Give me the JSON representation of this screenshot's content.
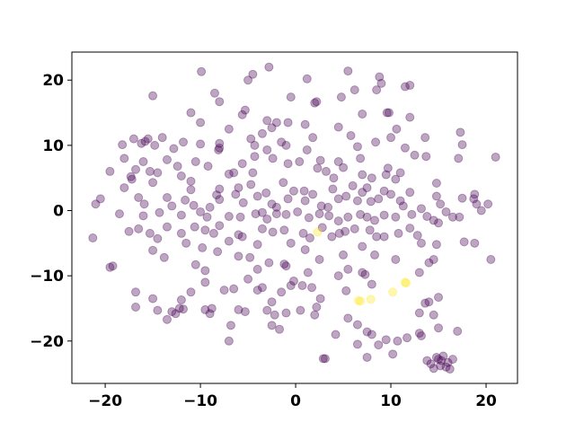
{
  "chart_data": {
    "type": "scatter",
    "xlim": [
      -23.5,
      23.3
    ],
    "ylim": [
      -26.5,
      24.3
    ],
    "xticks": [
      {
        "value": -20,
        "label": "−20"
      },
      {
        "value": -10,
        "label": "−10"
      },
      0,
      10,
      20
    ],
    "yticks": [
      {
        "value": -20,
        "label": "−20"
      },
      {
        "value": -10,
        "label": "−10"
      },
      0,
      10,
      20
    ],
    "alpha": 0.35,
    "series": [
      {
        "color": "#440154",
        "x": [
          -9.9,
          -4.5,
          -2.8,
          -5,
          1.2,
          5.5,
          8.5,
          8.8,
          9,
          12,
          11.5,
          -15,
          -8.5,
          -8,
          -0.5,
          2,
          2.2,
          4.8,
          6.2,
          -5.3,
          -5.6,
          -11,
          9.6,
          9.8,
          7,
          -10,
          -7,
          -8,
          -8.1,
          -8,
          -3,
          -2,
          -2.5,
          -3.5,
          -4.7,
          -4.3,
          -1.5,
          -1,
          -0.8,
          1,
          1.8,
          4.5,
          5.8,
          6.5,
          8.4,
          10,
          10.6,
          12,
          13.6,
          17.3,
          -18.2,
          -17,
          -16.2,
          -15.8,
          -15.5,
          -14.8,
          -14,
          -12.8,
          -11.8,
          -10,
          -19.5,
          -18,
          -17.2,
          -16.8,
          -16,
          -15.3,
          -14.5,
          -13.5,
          -12.4,
          -12,
          -11,
          -10.5,
          -9.2,
          -8,
          -7,
          -6.5,
          -5.6,
          -4.5,
          -4.3,
          -3,
          -2.4,
          -0.8,
          0.4,
          1.2,
          2.6,
          2.3,
          3.2,
          4,
          4.5,
          5,
          6.8,
          7,
          8,
          9.5,
          9.7,
          10.5,
          11,
          12.5,
          13.7,
          17.1,
          21,
          17.5,
          11.5,
          14.8,
          -20.5,
          -21,
          -18,
          -17.3,
          -16.5,
          -15.9,
          -15,
          -13.5,
          -13,
          -11.6,
          -10.7,
          -11,
          -10,
          -9,
          -8.3,
          -8,
          -6.3,
          -6,
          -5.5,
          -4.7,
          -4,
          -3.1,
          -2.5,
          -2,
          -1.3,
          -0.8,
          -0.2,
          0.9,
          1,
          1.8,
          2.7,
          3.4,
          3.9,
          4.5,
          5.3,
          6,
          6.5,
          7,
          7.5,
          7.9,
          8.7,
          9.3,
          10,
          11,
          11.3,
          12,
          13.2,
          14.8,
          15.2,
          17.5,
          18.7,
          18.8,
          19,
          20.2,
          -18.5,
          -16,
          -14.3,
          -12,
          -9.3,
          -7,
          -5.8,
          -4.2,
          -3.5,
          -3,
          -2,
          -1,
          0.2,
          1.4,
          2.5,
          3.5,
          4.5,
          5.5,
          6.8,
          7.5,
          8.3,
          9.3,
          10.5,
          12.2,
          13.8,
          14.5,
          15.8,
          16.5,
          17.2,
          19.5,
          -21.3,
          -17.5,
          -16.5,
          -15.3,
          -14.5,
          -13.5,
          -12,
          -11.5,
          -10.6,
          -9.5,
          -8.6,
          -8,
          -7,
          -6,
          -5.6,
          -4,
          -3.5,
          -2.4,
          -1.2,
          -0.5,
          0.8,
          1.5,
          2.8,
          3.8,
          4.6,
          5.2,
          6.2,
          7,
          7.8,
          8.5,
          9.3,
          10.8,
          12,
          12.8,
          13.2,
          14.8,
          15,
          17.7,
          18.8,
          -15,
          -13.8,
          -9.8,
          -8.2,
          -19.5,
          -19.2,
          -10.5,
          -9.5,
          -6,
          -4.8,
          -4,
          -2.8,
          -1.2,
          -1,
          1,
          2.5,
          5,
          5.5,
          7,
          7.3,
          8.3,
          10.5,
          13,
          14,
          14.5,
          20.5,
          -0.2,
          1.3,
          -16.8,
          -15,
          -12,
          -12.2,
          -11,
          -9.5,
          -8.8,
          -9.5,
          -7.5,
          -6.5,
          -5,
          -4,
          -3.5,
          -2.5,
          -1.5,
          -0.5,
          0.7,
          1.7,
          2.2,
          2.6,
          4.5,
          5.3,
          8,
          13,
          14,
          15,
          13.6,
          -16.8,
          -14.5,
          -13,
          -11.8,
          -6,
          -5.3,
          -13.5,
          -12.6,
          -9,
          -6.8,
          -3,
          -2.2,
          -2.5,
          -1.7,
          -1,
          0.5,
          2,
          4.2,
          5.5,
          6.5,
          6.5,
          7.5,
          8,
          8.7,
          9.5,
          10.7,
          11.7,
          13,
          13.2,
          14.5,
          -7,
          15,
          17,
          2.9,
          3.1,
          7.5,
          10.2,
          13.8,
          14.2,
          14.5,
          15,
          15.2,
          15.5,
          15.8,
          16,
          16.2,
          15.3,
          14.8,
          16.5
        ],
        "values": [
          21.3,
          20.9,
          22,
          20,
          20.2,
          21.4,
          18.5,
          20.5,
          19.5,
          19.2,
          19,
          17.6,
          18,
          16.7,
          17.4,
          16.5,
          16.7,
          17.4,
          18.5,
          15.4,
          14.7,
          15,
          15,
          15,
          14.8,
          13.5,
          12.5,
          10.3,
          9.3,
          9.6,
          13.8,
          13.5,
          12.7,
          11.8,
          11,
          10,
          10.5,
          10,
          13.5,
          13.2,
          11.2,
          12.8,
          11.5,
          9.8,
          10.5,
          11.2,
          12.5,
          14.3,
          11.2,
          12,
          10.1,
          11,
          10.3,
          10.6,
          11,
          10,
          11.2,
          9.5,
          10.5,
          10.2,
          6,
          8,
          4.8,
          6.3,
          7.5,
          6,
          5.8,
          7.8,
          6.8,
          5.3,
          4.5,
          7.5,
          6.8,
          3.3,
          5.6,
          5.8,
          7.2,
          5.8,
          8.3,
          9.3,
          8,
          7.2,
          7.5,
          9.3,
          7.7,
          6.5,
          6,
          5,
          7.5,
          6.6,
          8,
          5.5,
          5,
          5.5,
          6.5,
          4.8,
          5.8,
          8.5,
          8.3,
          8,
          8.2,
          10.1,
          9.6,
          4.2,
          1.8,
          1,
          3.5,
          5.2,
          2,
          1,
          4.3,
          2,
          0.7,
          1.6,
          0.8,
          3.2,
          -0.2,
          0.5,
          2.4,
          1.7,
          2.5,
          3.5,
          1.2,
          4,
          2.2,
          2.7,
          1,
          0.5,
          4.3,
          1.8,
          3,
          3,
          1.5,
          2.5,
          0.7,
          0.5,
          3.3,
          1.8,
          2.2,
          3.8,
          1.5,
          2.8,
          3.5,
          1.4,
          1.8,
          3,
          2.5,
          1.5,
          0.7,
          2.8,
          0.3,
          2.2,
          1,
          1.9,
          1.8,
          2.5,
          1,
          1,
          -0.5,
          -0.8,
          -0.3,
          -0.7,
          -1,
          -0.9,
          -1,
          -0.5,
          -0.3,
          -1.3,
          -0.5,
          -0.6,
          -0.2,
          -1.1,
          -0.5,
          -0.8,
          -1.6,
          -1,
          -0.6,
          -1,
          -1.5,
          -0.7,
          -1,
          -0.6,
          -0.9,
          -1.5,
          -0.2,
          -1,
          -1,
          0,
          -4.2,
          -3.2,
          -2.8,
          -3.5,
          -4.3,
          -2.5,
          -3.5,
          -5,
          -2.5,
          -3,
          -3.5,
          -2.3,
          -4.7,
          -3.7,
          -4,
          -5.2,
          -2.8,
          -3.3,
          -3,
          -5,
          -3.5,
          -4.2,
          -2.6,
          -4,
          -3.5,
          -3.2,
          -2.8,
          -5.5,
          -3,
          -4,
          -4,
          -3.5,
          -2.7,
          -3.8,
          -5,
          -5.2,
          -1.9,
          -4.8,
          -5,
          -6.1,
          -7.2,
          -5.7,
          -6.3,
          -8.7,
          -8.5,
          -8.3,
          -9.2,
          -7,
          -7.2,
          -9,
          -8,
          -8.2,
          -8.5,
          -6,
          -7.5,
          -6.8,
          -9,
          -9.5,
          -9.8,
          -6.8,
          -7.5,
          -9.5,
          -8,
          -7.5,
          -7.5,
          -10.8,
          -9.5,
          -12.5,
          -13.5,
          -13.7,
          -15,
          -12.5,
          -11,
          -15,
          -15.2,
          -12.2,
          -12,
          -10.5,
          -12.2,
          -11.8,
          -14,
          -12.5,
          -11.5,
          -11.5,
          -11.8,
          -14.8,
          -13.5,
          -10,
          -12.3,
          -11.3,
          -15.7,
          -14,
          -13.3,
          -14.2,
          -14.8,
          -15.3,
          -15.5,
          -15.1,
          -15.2,
          -15.5,
          -16.7,
          -15.8,
          -15.8,
          -17.6,
          -15.3,
          -16,
          -17.6,
          -18.2,
          -15.7,
          -15.3,
          -16,
          -19,
          -16.5,
          -17.5,
          -20.5,
          -18.6,
          -19,
          -20.6,
          -19.8,
          -20,
          -19.5,
          -18.8,
          -19.2,
          -16,
          -20,
          -18,
          -18.5,
          -22.7,
          -22.7,
          -22.5,
          -22,
          -23,
          -23.5,
          -24.2,
          -22.8,
          -23.8,
          -22.3,
          -24,
          -23.3,
          -24.3,
          -23,
          -22.5,
          -22.8
        ]
      },
      {
        "color": "#fde725",
        "x": [
          2.3,
          6.6,
          6.8,
          7.9,
          10.2,
          11.5,
          11.6
        ],
        "values": [
          -3.3,
          -13.8,
          -13.9,
          -13.6,
          -12.5,
          -11,
          -11.1
        ]
      }
    ]
  }
}
